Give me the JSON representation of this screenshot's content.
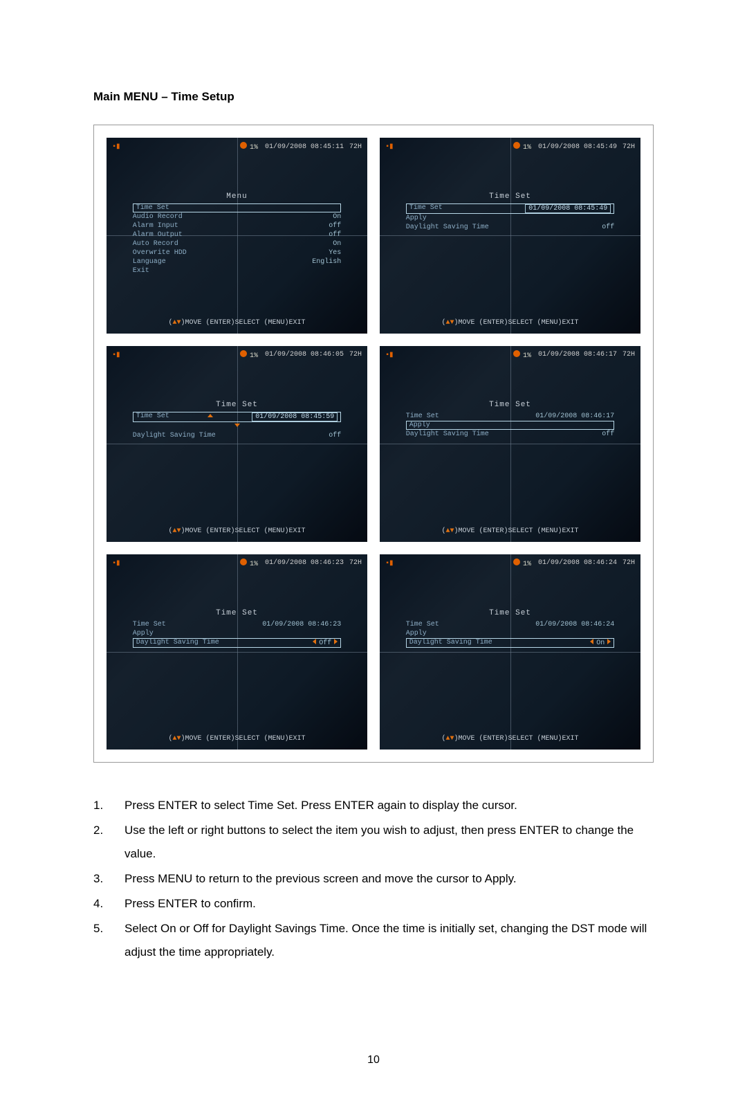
{
  "page": {
    "title": "Main MENU – Time Setup",
    "pageNumber": "10"
  },
  "shots": [
    {
      "percent": "1%",
      "timestamp": "01/09/2008 08:45:11",
      "where": "72H",
      "title": "Menu",
      "rows": [
        {
          "label": "Time Set",
          "value": "",
          "sel": true
        },
        {
          "label": "Audio Record",
          "value": "On"
        },
        {
          "label": "Alarm Input",
          "value": "off"
        },
        {
          "label": "Alarm Output",
          "value": "off"
        },
        {
          "label": "Auto Record",
          "value": "On"
        },
        {
          "label": "Overwrite HDD",
          "value": "Yes"
        },
        {
          "label": "Language",
          "value": "English"
        },
        {
          "label": "Exit",
          "value": ""
        }
      ],
      "hint": "MOVE (ENTER)SELECT (MENU)EXIT"
    },
    {
      "percent": "1%",
      "timestamp": "01/09/2008 08:45:49",
      "where": "72H",
      "title": "Time Set",
      "rows": [
        {
          "label": "Time Set",
          "value": "01/09/2008 08:45:49",
          "sel": true,
          "box": true
        },
        {
          "label": "Apply",
          "value": ""
        },
        {
          "label": "Daylight Saving Time",
          "value": "off"
        }
      ],
      "hint": "MOVE (ENTER)SELECT (MENU)EXIT"
    },
    {
      "percent": "1%",
      "timestamp": "01/09/2008 08:46:05",
      "where": "72H",
      "title": "Time Set",
      "rows": [
        {
          "label": "Time Set",
          "value": "01/09/2008 08:45:59",
          "sel": true,
          "box": true,
          "arrows": true
        },
        {
          "label": "",
          "value": ""
        },
        {
          "label": "Daylight Saving Time",
          "value": "off"
        }
      ],
      "hint": "MOVE (ENTER)SELECT (MENU)EXIT"
    },
    {
      "percent": "1%",
      "timestamp": "01/09/2008 08:46:17",
      "where": "72H",
      "title": "Time Set",
      "rows": [
        {
          "label": "Time Set",
          "value": "01/09/2008 08:46:17"
        },
        {
          "label": "Apply",
          "value": "",
          "sel": true
        },
        {
          "label": "Daylight Saving Time",
          "value": "off"
        }
      ],
      "hint": "MOVE (ENTER)SELECT (MENU)EXIT"
    },
    {
      "percent": "1%",
      "timestamp": "01/09/2008 08:46:23",
      "where": "72H",
      "title": "Time Set",
      "rows": [
        {
          "label": "Time Set",
          "value": "01/09/2008 08:46:23"
        },
        {
          "label": "Apply",
          "value": ""
        },
        {
          "label": "Daylight Saving Time",
          "value": "Off",
          "sel": true,
          "lr": true
        }
      ],
      "hint": "MOVE (ENTER)SELECT (MENU)EXIT"
    },
    {
      "percent": "1%",
      "timestamp": "01/09/2008 08:46:24",
      "where": "72H",
      "title": "Time Set",
      "rows": [
        {
          "label": "Time Set",
          "value": "01/09/2008 08:46:24"
        },
        {
          "label": "Apply",
          "value": ""
        },
        {
          "label": "Daylight Saving Time",
          "value": "On",
          "sel": true,
          "lr": true
        }
      ],
      "hint": "MOVE (ENTER)SELECT (MENU)EXIT"
    }
  ],
  "instructions": [
    {
      "n": "1.",
      "t": "Press ENTER to select Time Set.   Press ENTER again to display the cursor."
    },
    {
      "n": "2.",
      "t": "Use the left or right buttons to select the item you wish to adjust, then press ENTER to change the value."
    },
    {
      "n": "3.",
      "t": "Press MENU to return to the previous screen and move the cursor to Apply."
    },
    {
      "n": "4.",
      "t": "Press ENTER to confirm."
    },
    {
      "n": "5.",
      "t": "Select On or Off for Daylight Savings Time.   Once the time is initially set, changing the DST mode will adjust the time appropriately."
    }
  ]
}
